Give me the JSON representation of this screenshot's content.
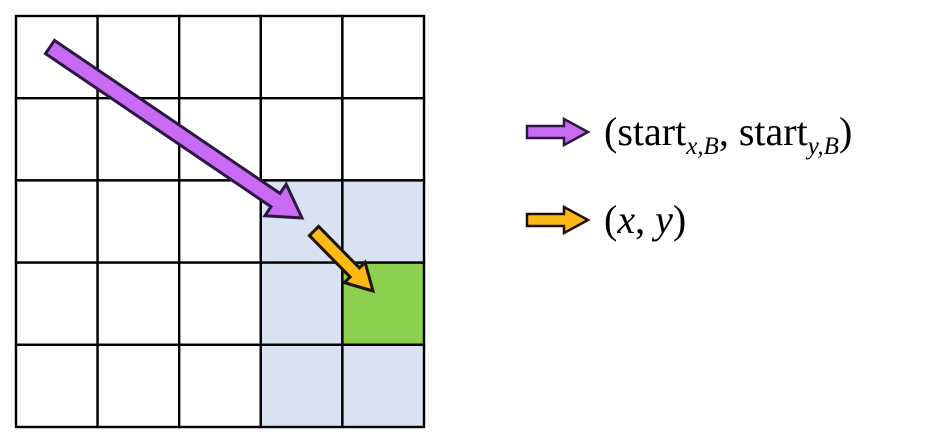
{
  "figure": {
    "background": "#FFFFFF",
    "grid": {
      "rows": 5,
      "cols": 5,
      "line_color": "#000000",
      "default_cell_color": "#FFFFFF",
      "neighborhood_cell_color": "#D9E2F3",
      "target_cell_color": "#8DCF4E",
      "neighborhood_cells": [
        [
          3,
          2
        ],
        [
          4,
          2
        ],
        [
          3,
          3
        ],
        [
          3,
          4
        ],
        [
          4,
          4
        ]
      ],
      "target_cell": [
        4,
        3
      ]
    },
    "arrows": {
      "start_vector": {
        "name": "start-vector-arrow",
        "fill": "#C96BF2",
        "outline": "#2B1743"
      },
      "xy_vector": {
        "name": "xy-vector-arrow",
        "fill": "#FEB914",
        "outline": "#1C1406"
      }
    },
    "legend": {
      "text_color": "#000000",
      "start_label": {
        "open": "(",
        "word1": "start",
        "sub1": "x,B",
        "sep": ", ",
        "word2": "start",
        "sub2": "y,B",
        "close": ")"
      },
      "xy_label": {
        "open": "(",
        "x": "x",
        "sep": ", ",
        "y": "y",
        "close": ")"
      }
    }
  }
}
